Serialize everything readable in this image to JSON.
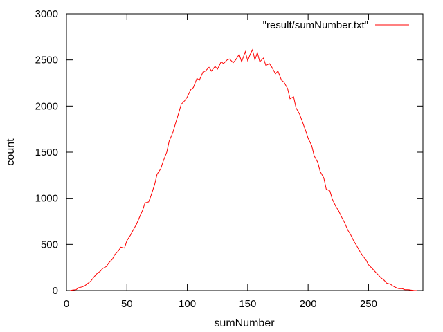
{
  "chart_data": {
    "type": "line",
    "title": "",
    "xlabel": "sumNumber",
    "ylabel": "count",
    "xlim": [
      0,
      295
    ],
    "ylim": [
      0,
      3000
    ],
    "grid": false,
    "legend_position": "top-right",
    "x_ticks": [
      0,
      50,
      100,
      150,
      200,
      250
    ],
    "y_ticks": [
      0,
      500,
      1000,
      1500,
      2000,
      2500,
      3000
    ],
    "series": [
      {
        "name": "\"result/sumNumber.txt\"",
        "color": "#ff0000",
        "x": [
          3,
          5,
          8,
          10,
          13,
          15,
          18,
          20,
          23,
          25,
          28,
          30,
          33,
          35,
          38,
          40,
          43,
          45,
          48,
          50,
          53,
          55,
          58,
          60,
          63,
          65,
          68,
          70,
          73,
          75,
          78,
          80,
          83,
          85,
          88,
          90,
          93,
          95,
          98,
          100,
          103,
          105,
          108,
          110,
          113,
          115,
          118,
          120,
          123,
          125,
          128,
          130,
          133,
          135,
          138,
          140,
          143,
          145,
          148,
          150,
          152,
          154,
          156,
          158,
          160,
          163,
          165,
          168,
          170,
          173,
          175,
          178,
          180,
          183,
          185,
          188,
          190,
          193,
          195,
          198,
          200,
          203,
          205,
          208,
          210,
          213,
          215,
          218,
          220,
          223,
          225,
          228,
          230,
          233,
          235,
          238,
          240,
          243,
          245,
          248,
          250,
          253,
          255,
          258,
          260,
          263,
          265,
          268,
          270,
          273,
          275,
          278,
          280,
          283,
          285,
          288,
          290
        ],
        "values": [
          0,
          5,
          10,
          30,
          40,
          50,
          80,
          100,
          150,
          180,
          210,
          240,
          260,
          300,
          340,
          390,
          430,
          470,
          460,
          540,
          600,
          650,
          720,
          780,
          870,
          950,
          960,
          1030,
          1150,
          1260,
          1320,
          1400,
          1500,
          1620,
          1710,
          1800,
          1930,
          2020,
          2060,
          2100,
          2180,
          2200,
          2300,
          2280,
          2370,
          2380,
          2420,
          2380,
          2430,
          2400,
          2480,
          2460,
          2500,
          2510,
          2470,
          2500,
          2560,
          2480,
          2590,
          2490,
          2560,
          2610,
          2500,
          2580,
          2480,
          2520,
          2440,
          2460,
          2420,
          2350,
          2380,
          2280,
          2260,
          2190,
          2080,
          2100,
          1980,
          1910,
          1840,
          1730,
          1650,
          1570,
          1460,
          1390,
          1290,
          1220,
          1100,
          1080,
          990,
          910,
          870,
          790,
          740,
          650,
          610,
          530,
          490,
          420,
          380,
          330,
          280,
          240,
          210,
          170,
          140,
          110,
          80,
          70,
          50,
          30,
          20,
          20,
          10,
          10,
          5,
          0,
          0
        ]
      }
    ]
  }
}
